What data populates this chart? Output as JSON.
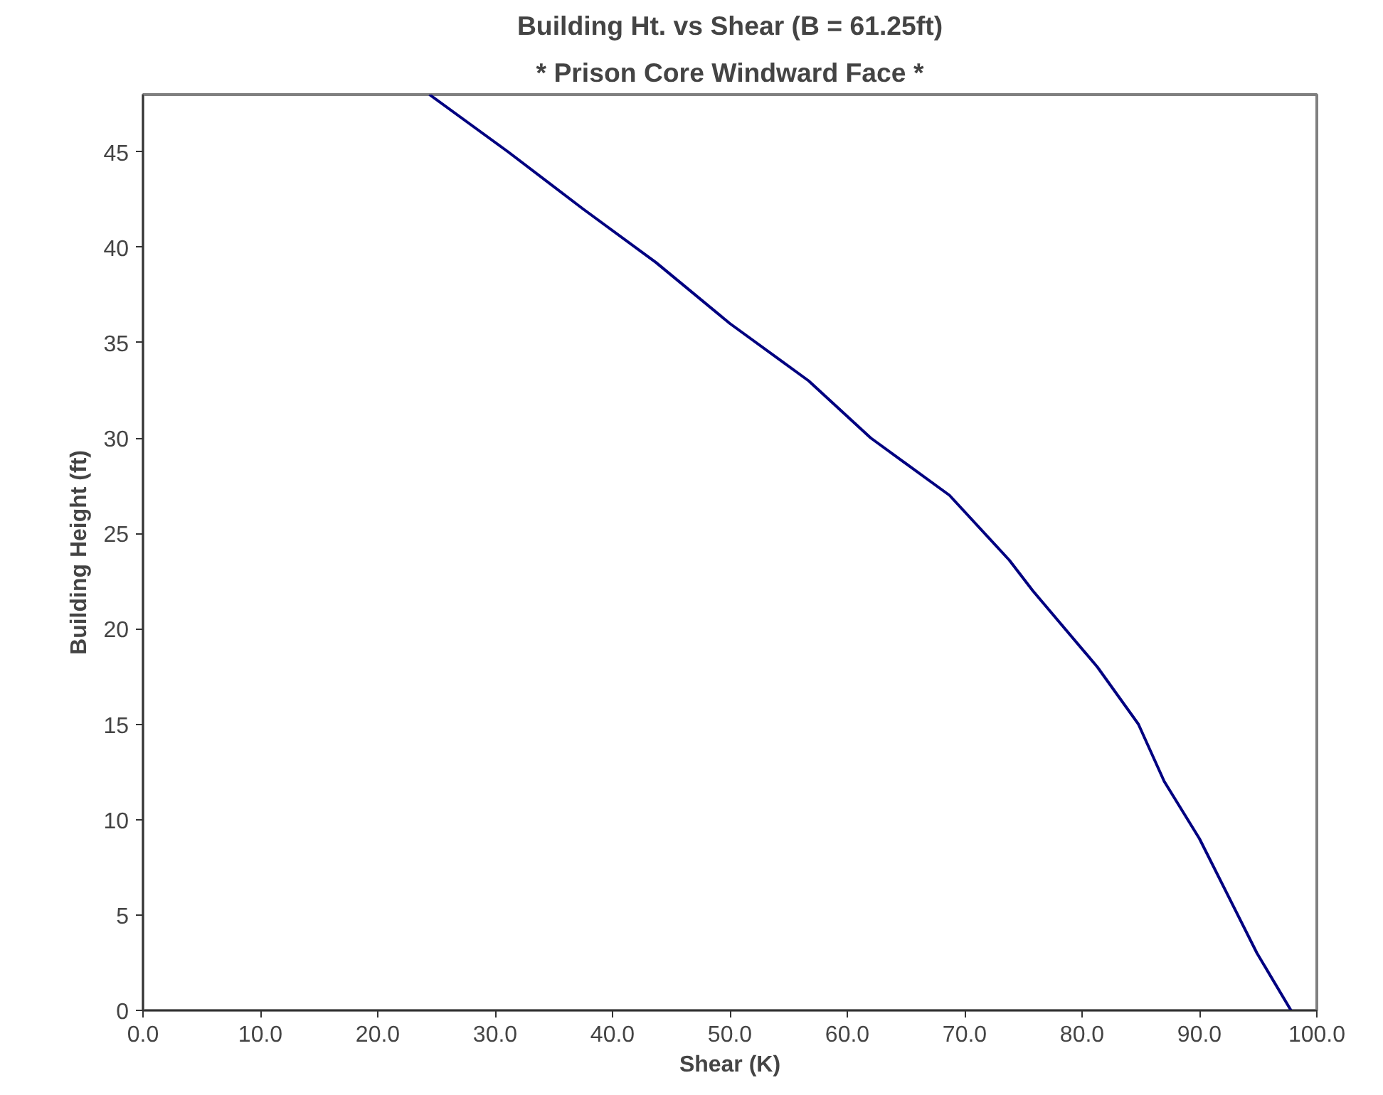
{
  "chart_data": {
    "type": "line",
    "title": "Building Ht. vs Shear (B = 61.25ft)",
    "subtitle": "* Prison Core Windward Face *",
    "xlabel": "Shear (K)",
    "ylabel": "Building Height (ft)",
    "x": [
      97.8,
      94.9,
      90.0,
      87.0,
      84.8,
      81.3,
      75.8,
      73.8,
      68.7,
      62.0,
      56.7,
      50.0,
      43.7,
      37.5,
      31.1,
      24.4
    ],
    "series": [
      {
        "color": "#000080",
        "values": [
          0,
          3,
          9,
          12,
          15,
          18,
          22,
          23.6,
          27,
          30,
          33,
          36,
          39.2,
          42,
          45,
          48
        ]
      }
    ],
    "xlim": [
      0,
      100
    ],
    "ylim": [
      0,
      48
    ],
    "xticks": [
      {
        "value": 0,
        "label": "0.0"
      },
      {
        "value": 10,
        "label": "10.0"
      },
      {
        "value": 20,
        "label": "20.0"
      },
      {
        "value": 30,
        "label": "30.0"
      },
      {
        "value": 40,
        "label": "40.0"
      },
      {
        "value": 50,
        "label": "50.0"
      },
      {
        "value": 60,
        "label": "60.0"
      },
      {
        "value": 70,
        "label": "70.0"
      },
      {
        "value": 80,
        "label": "80.0"
      },
      {
        "value": 90,
        "label": "90.0"
      },
      {
        "value": 100,
        "label": "100.0"
      }
    ],
    "yticks": [
      0,
      5,
      10,
      15,
      20,
      25,
      30,
      35,
      40,
      45
    ],
    "grid": false,
    "marker": "none",
    "line_style": "solid"
  }
}
